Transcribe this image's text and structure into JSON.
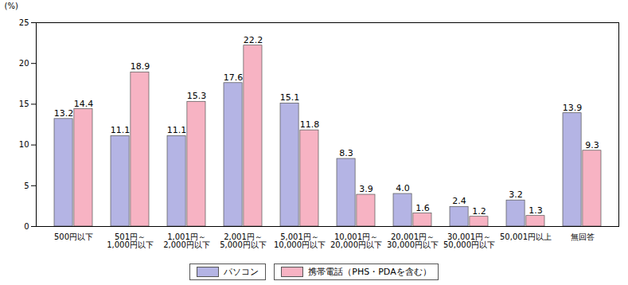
{
  "chart_data": {
    "type": "bar",
    "y_label": "(%)",
    "categories": [
      "500円以下",
      "501円～\n1,000円以下",
      "1,001円～\n2,000円以下",
      "2,001円～\n5,000円以下",
      "5,001円～\n10,000円以下",
      "10,001円～\n20,000円以下",
      "20,001円～\n30,000円以下",
      "30,001円～\n50,000円以下",
      "50,001円以上",
      "無回答"
    ],
    "series": [
      {
        "name": "パソコン",
        "color": "#b4b4e4",
        "values": [
          13.2,
          11.1,
          11.1,
          17.6,
          15.1,
          8.3,
          4.0,
          2.4,
          3.2,
          13.9
        ],
        "value_labels": [
          "13.2",
          "11.1",
          "11.1",
          "17.6",
          "15.1",
          "8.3",
          "4.0",
          "2.4",
          "3.2",
          "13.9"
        ]
      },
      {
        "name": "携帯電話（PHS・PDAを含む）",
        "color": "#f7b3c3",
        "values": [
          14.4,
          18.9,
          15.3,
          22.2,
          11.8,
          3.9,
          1.6,
          1.2,
          1.3,
          9.3
        ],
        "value_labels": [
          "14.4",
          "18.9",
          "15.3",
          "22.2",
          "11.8",
          "3.9",
          "1.6",
          "1.2",
          "1.3",
          "9.3"
        ]
      }
    ],
    "ylim": [
      0,
      25
    ],
    "yticks": [
      0,
      5,
      10,
      15,
      20,
      25
    ],
    "data_labels": true,
    "legend": "bottom"
  }
}
